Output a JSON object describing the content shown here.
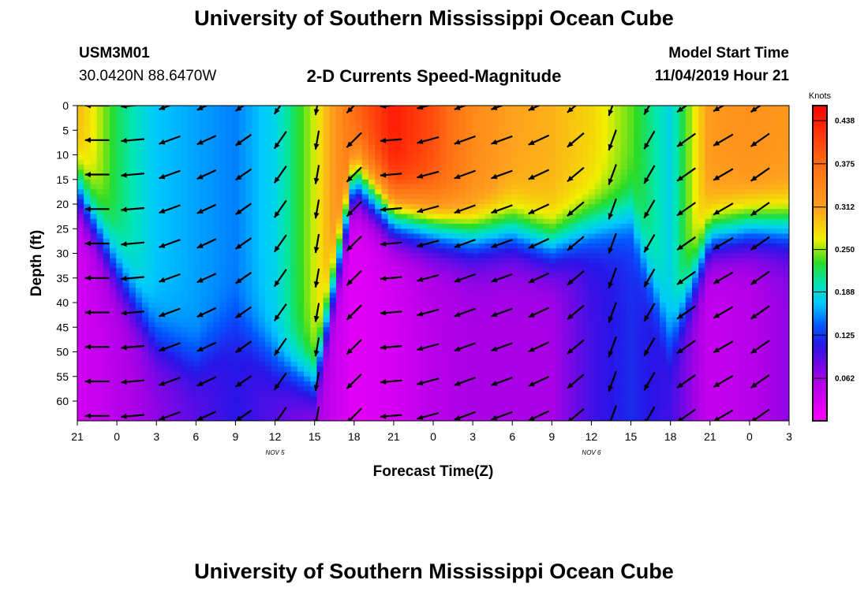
{
  "header": {
    "title": "University of Southern Mississippi Ocean Cube",
    "station_id": "USM3M01",
    "station_location": "30.0420N 88.6470W",
    "plot_title": "2-D Currents Speed-Magnitude",
    "model_start_label": "Model Start Time",
    "model_start_value": "11/04/2019 Hour 21"
  },
  "footer": {
    "title": "University of Southern Mississippi Ocean Cube"
  },
  "chart_data": {
    "type": "heatmap",
    "xlabel": "Forecast Time(Z)",
    "ylabel": "Depth (ft)",
    "x_tick_labels": [
      "21",
      "0",
      "3",
      "6",
      "9",
      "12",
      "15",
      "18",
      "21",
      "0",
      "3",
      "6",
      "9",
      "12",
      "15",
      "18",
      "21",
      "0",
      "3"
    ],
    "x_range_hours": [
      0,
      54
    ],
    "date_labels": [
      {
        "text": "NOV 5",
        "hour": 15
      },
      {
        "text": "NOV 6",
        "hour": 39
      }
    ],
    "y_tick_labels": [
      "0",
      "5",
      "10",
      "15",
      "20",
      "25",
      "30",
      "35",
      "40",
      "45",
      "50",
      "55",
      "60"
    ],
    "ylim": [
      64,
      0
    ],
    "colorbar": {
      "unit_label": "Knots",
      "tick_labels": [
        "0.438",
        "0.375",
        "0.312",
        "0.250",
        "0.188",
        "0.125",
        "0.062"
      ],
      "range": [
        0.0,
        0.46
      ]
    },
    "profile_hours": [
      0,
      3,
      6,
      9,
      12,
      15,
      18,
      21,
      24,
      27,
      30,
      33,
      36,
      39,
      42,
      45,
      48,
      51,
      54
    ],
    "speed_surface": [
      0.3,
      0.22,
      0.17,
      0.16,
      0.15,
      0.18,
      0.26,
      0.38,
      0.44,
      0.4,
      0.34,
      0.31,
      0.3,
      0.28,
      0.24,
      0.18,
      0.32,
      0.33,
      0.32
    ],
    "shear_depth": [
      16,
      33,
      48,
      52,
      44,
      52,
      56,
      14,
      22,
      24,
      26,
      25,
      28,
      24,
      22,
      48,
      26,
      24,
      24
    ],
    "speed_bottom": [
      0.03,
      0.05,
      0.07,
      0.09,
      0.11,
      0.09,
      0.06,
      0.02,
      0.03,
      0.05,
      0.06,
      0.06,
      0.06,
      0.1,
      0.12,
      0.1,
      0.04,
      0.05,
      0.07
    ],
    "vector_hours": [
      1.5,
      4.2,
      7.0,
      9.8,
      12.6,
      15.4,
      18.2,
      21.0,
      23.8,
      26.6,
      29.4,
      32.2,
      35.0,
      37.8,
      40.6,
      43.4,
      46.2,
      49.0,
      51.8
    ],
    "vector_depths": [
      0,
      7,
      14,
      21,
      28,
      35,
      42,
      49,
      56,
      63
    ],
    "vector_direction_deg": [
      270,
      265,
      250,
      245,
      235,
      215,
      190,
      225,
      265,
      255,
      250,
      250,
      245,
      230,
      200,
      210,
      235,
      240,
      235
    ],
    "vector_speed": [
      0.28,
      0.27,
      0.26,
      0.24,
      0.22,
      0.24,
      0.22,
      0.24,
      0.25,
      0.26,
      0.26,
      0.26,
      0.26,
      0.25,
      0.25,
      0.24,
      0.26,
      0.26,
      0.26
    ]
  }
}
